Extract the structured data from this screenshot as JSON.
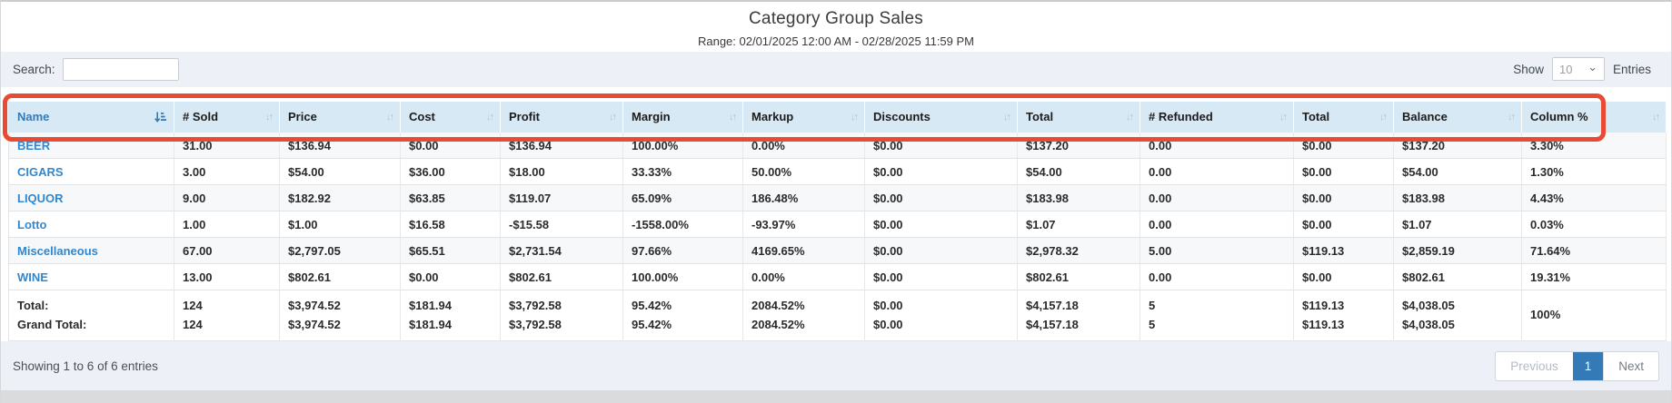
{
  "page": {
    "title": "Category Group Sales",
    "subtitle": "Range: 02/01/2025 12:00 AM - 02/28/2025 11:59 PM"
  },
  "toolbar": {
    "search_label": "Search:",
    "search_value": "",
    "show_label": "Show",
    "page_size": "10",
    "entries_label": "Entries"
  },
  "icons": {
    "sort_unsorted": "↓↑",
    "select_chevron": "⌄"
  },
  "colors": {
    "accent_blue": "#337ab7",
    "link_blue": "#3287ce",
    "header_bg": "#d8e9f6",
    "annotation_red": "#e84a33"
  },
  "table": {
    "columns": [
      {
        "label": "Name",
        "sorted": true
      },
      {
        "label": "# Sold",
        "sorted": false
      },
      {
        "label": "Price",
        "sorted": false
      },
      {
        "label": "Cost",
        "sorted": false
      },
      {
        "label": "Profit",
        "sorted": false
      },
      {
        "label": "Margin",
        "sorted": false
      },
      {
        "label": "Markup",
        "sorted": false
      },
      {
        "label": "Discounts",
        "sorted": false
      },
      {
        "label": "Total",
        "sorted": false
      },
      {
        "label": "# Refunded",
        "sorted": false
      },
      {
        "label": "Total",
        "sorted": false
      },
      {
        "label": "Balance",
        "sorted": false
      },
      {
        "label": "Column %",
        "sorted": false
      }
    ],
    "rows": [
      {
        "name": "BEER",
        "values": [
          "31.00",
          "$136.94",
          "$0.00",
          "$136.94",
          "100.00%",
          "0.00%",
          "$0.00",
          "$137.20",
          "0.00",
          "$0.00",
          "$137.20",
          "3.30%"
        ]
      },
      {
        "name": "CIGARS",
        "values": [
          "3.00",
          "$54.00",
          "$36.00",
          "$18.00",
          "33.33%",
          "50.00%",
          "$0.00",
          "$54.00",
          "0.00",
          "$0.00",
          "$54.00",
          "1.30%"
        ]
      },
      {
        "name": "LIQUOR",
        "values": [
          "9.00",
          "$182.92",
          "$63.85",
          "$119.07",
          "65.09%",
          "186.48%",
          "$0.00",
          "$183.98",
          "0.00",
          "$0.00",
          "$183.98",
          "4.43%"
        ]
      },
      {
        "name": "Lotto",
        "values": [
          "1.00",
          "$1.00",
          "$16.58",
          "-$15.58",
          "-1558.00%",
          "-93.97%",
          "$0.00",
          "$1.07",
          "0.00",
          "$0.00",
          "$1.07",
          "0.03%"
        ]
      },
      {
        "name": "Miscellaneous",
        "values": [
          "67.00",
          "$2,797.05",
          "$65.51",
          "$2,731.54",
          "97.66%",
          "4169.65%",
          "$0.00",
          "$2,978.32",
          "5.00",
          "$119.13",
          "$2,859.19",
          "71.64%"
        ]
      },
      {
        "name": "WINE",
        "values": [
          "13.00",
          "$802.61",
          "$0.00",
          "$802.61",
          "100.00%",
          "0.00%",
          "$0.00",
          "$802.61",
          "0.00",
          "$0.00",
          "$802.61",
          "19.31%"
        ]
      }
    ],
    "footer": {
      "row_labels": [
        "Total:",
        "Grand Total:"
      ],
      "total_values": [
        "124",
        "$3,974.52",
        "$181.94",
        "$3,792.58",
        "95.42%",
        "2084.52%",
        "$0.00",
        "$4,157.18",
        "5",
        "$119.13",
        "$4,038.05"
      ],
      "grand_total_values": [
        "124",
        "$3,974.52",
        "$181.94",
        "$3,792.58",
        "95.42%",
        "2084.52%",
        "$0.00",
        "$4,157.18",
        "5",
        "$119.13",
        "$4,038.05"
      ],
      "column_percent": "100%"
    }
  },
  "footer_bar": {
    "showing_text": "Showing 1 to 6 of 6 entries",
    "pagination": {
      "previous": "Previous",
      "current_page": "1",
      "next": "Next"
    }
  }
}
